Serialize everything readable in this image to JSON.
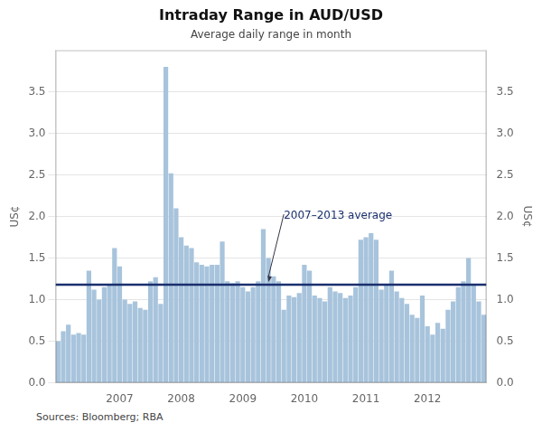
{
  "chart_data": {
    "type": "bar",
    "title": "Intraday Range in AUD/USD",
    "subtitle": "Average daily range in month",
    "ylabel": "US¢",
    "y2label": "US¢",
    "source": "Sources: Bloomberg; RBA",
    "color": "#a8c4dc",
    "grid": true,
    "ylim": [
      0,
      4.0
    ],
    "yticks": [
      {
        "value": 0.0,
        "label": "0.0"
      },
      0.5,
      {
        "value": 1.0,
        "label": "1.0"
      },
      1.5,
      {
        "value": 2.0,
        "label": "2.0"
      },
      2.5,
      {
        "value": 3.0,
        "label": "3.0"
      },
      3.5
    ],
    "y2lim": [
      0,
      4.0
    ],
    "y2ticks": [
      {
        "value": 0.0,
        "label": "0.0"
      },
      0.5,
      {
        "value": 1.0,
        "label": "1.0"
      },
      1.5,
      {
        "value": 2.0,
        "label": "2.0"
      },
      2.5,
      {
        "value": 3.0,
        "label": "3.0"
      },
      3.5
    ],
    "average_line": {
      "value": 1.18,
      "label": "2007–2013 average",
      "color": "#1a2f6e"
    },
    "categories": [
      null,
      null,
      null,
      null,
      null,
      null,
      null,
      null,
      null,
      null,
      null,
      null,
      "2007",
      null,
      null,
      null,
      null,
      null,
      null,
      null,
      null,
      null,
      null,
      null,
      "2008",
      null,
      null,
      null,
      null,
      null,
      null,
      null,
      null,
      null,
      null,
      null,
      "2009",
      null,
      null,
      null,
      null,
      null,
      null,
      null,
      null,
      null,
      null,
      null,
      "2010",
      null,
      null,
      null,
      null,
      null,
      null,
      null,
      null,
      null,
      null,
      null,
      "2011",
      null,
      null,
      null,
      null,
      null,
      null,
      null,
      null,
      null,
      null,
      null,
      "2012",
      null,
      null,
      null,
      null,
      null,
      null,
      null,
      null,
      null,
      null,
      null
    ],
    "values": [
      0.5,
      0.62,
      0.7,
      0.58,
      0.6,
      0.58,
      1.35,
      1.12,
      1.0,
      1.15,
      1.18,
      1.62,
      1.4,
      1.0,
      0.95,
      0.98,
      0.9,
      0.88,
      1.22,
      1.27,
      0.95,
      3.8,
      2.52,
      2.1,
      1.75,
      1.65,
      1.62,
      1.45,
      1.42,
      1.4,
      1.42,
      1.42,
      1.7,
      1.22,
      1.2,
      1.22,
      1.15,
      1.1,
      1.15,
      1.22,
      1.85,
      1.5,
      1.28,
      1.22,
      0.88,
      1.05,
      1.03,
      1.08,
      1.42,
      1.35,
      1.05,
      1.02,
      0.98,
      1.15,
      1.1,
      1.08,
      1.02,
      1.05,
      1.15,
      1.72,
      1.75,
      1.8,
      1.72,
      1.12,
      1.18,
      1.35,
      1.1,
      1.02,
      0.95,
      0.82,
      0.78,
      1.05,
      0.68,
      0.58,
      0.72,
      0.65,
      0.88,
      0.98,
      1.15,
      1.22,
      1.5,
      1.18,
      0.98,
      0.82
    ]
  }
}
